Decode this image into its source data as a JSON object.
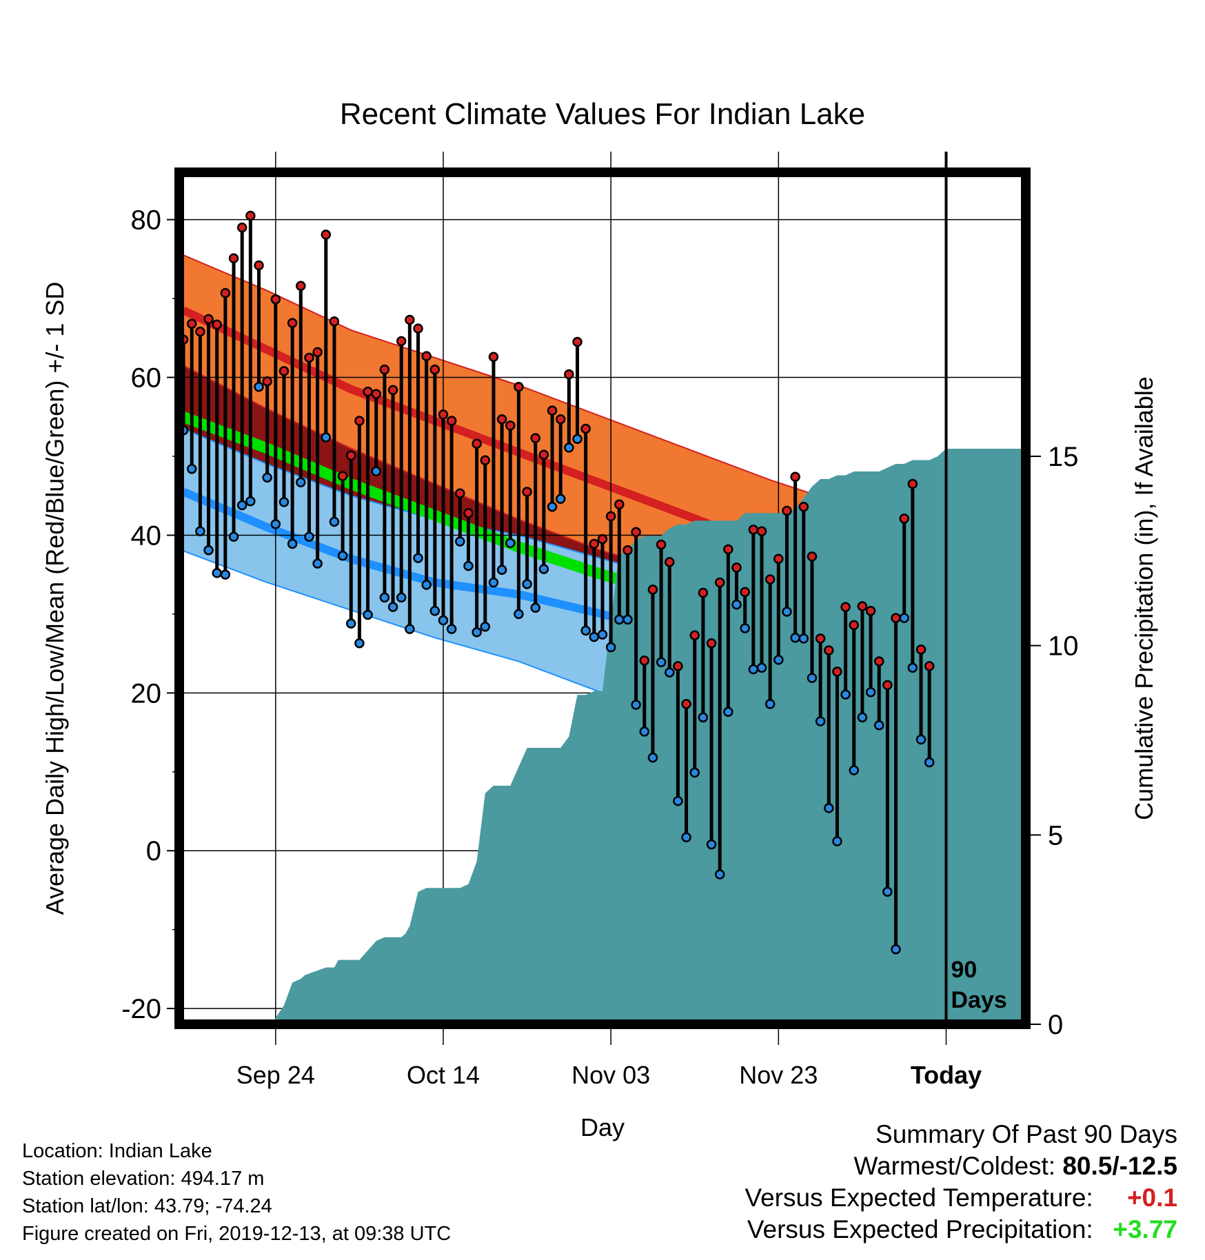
{
  "chart_data": {
    "type": "line",
    "title": "Recent Climate Values For Indian Lake",
    "xlabel": "Day",
    "ylabel": "Average Daily High/Low/Mean (Red/Blue/Green) +/- 1 SD",
    "y2label": "Cumulative Precipitation (in), If Available",
    "ylim": [
      -22,
      86
    ],
    "y2lim": [
      0,
      22.5
    ],
    "yticks": [
      -20,
      0,
      20,
      40,
      60,
      80
    ],
    "y2ticks": [
      0,
      5,
      10,
      15
    ],
    "xticks": [
      {
        "day": 23,
        "label": "Sep 24"
      },
      {
        "day": 43,
        "label": "Oct 14"
      },
      {
        "day": 63,
        "label": "Nov 03"
      },
      {
        "day": 83,
        "label": "Nov 23"
      },
      {
        "day": 103,
        "label": "Today"
      }
    ],
    "xlim": [
      11.5,
      112.5
    ],
    "today_marker": {
      "day": 103,
      "label_line1": "90",
      "label_line2": "Days"
    },
    "normals": {
      "days": [
        12,
        22,
        32,
        42,
        52,
        62,
        72,
        82,
        92,
        102,
        112
      ],
      "high_mean": [
        68.5,
        63.5,
        58.5,
        54.5,
        50.5,
        46.5,
        42.5,
        38.5,
        34.0,
        30.0,
        27.5
      ],
      "high_upper": [
        75.5,
        71.0,
        66.0,
        62.5,
        59.0,
        55.0,
        51.0,
        47.0,
        43.5,
        40.5,
        38.5
      ],
      "high_lower": [
        61.5,
        56.0,
        51.0,
        46.5,
        42.0,
        38.0,
        35.0,
        31.5,
        28.5,
        26.0,
        23.5
      ],
      "mean_line": [
        55.0,
        51.0,
        46.5,
        42.5,
        38.5,
        35.0,
        32.0,
        28.0,
        24.5,
        20.5,
        17.5
      ],
      "low_mean": [
        45.5,
        41.0,
        37.0,
        34.0,
        32.5,
        30.0,
        27.0,
        24.0,
        19.5,
        15.0,
        12.0
      ],
      "low_upper": [
        53.5,
        49.0,
        45.0,
        42.0,
        40.0,
        37.0,
        34.0,
        30.5,
        26.0,
        22.0,
        20.0
      ],
      "low_lower": [
        38.0,
        34.0,
        30.5,
        27.0,
        24.0,
        20.0,
        14.0,
        7.5,
        3.0,
        0.0,
        0.0
      ]
    },
    "series": [
      {
        "name": "High",
        "color": "#cc2222",
        "values": [
          64.8,
          66.8,
          65.8,
          67.4,
          66.7,
          70.7,
          75.1,
          79.0,
          80.5,
          74.2,
          59.5,
          69.9,
          60.8,
          66.9,
          71.6,
          62.5,
          63.2,
          78.1,
          67.1,
          47.5,
          50.1,
          54.5,
          58.2,
          57.9,
          61.0,
          58.4,
          64.6,
          67.3,
          66.2,
          62.7,
          61.0,
          55.3,
          54.5,
          45.3,
          42.8,
          51.6,
          49.5,
          62.6,
          54.7,
          53.9,
          58.8,
          45.5,
          52.3,
          50.2,
          55.8,
          54.7,
          60.4,
          64.5,
          53.5,
          38.9,
          39.5,
          42.4,
          43.9,
          38.1,
          40.4,
          24.1,
          33.1,
          38.8,
          36.6,
          23.4,
          18.6,
          27.3,
          32.7,
          26.3,
          34.0,
          38.2,
          35.9,
          32.8,
          40.7,
          40.5,
          34.4,
          37.0,
          43.1,
          47.4,
          43.6,
          37.3,
          26.9,
          25.4,
          22.7,
          30.9,
          28.6,
          31.0,
          30.4,
          24.0,
          21.0,
          29.5,
          42.1,
          46.5,
          25.5,
          23.4
        ]
      },
      {
        "name": "Low",
        "color": "#2a7fd4",
        "values": [
          53.3,
          48.4,
          40.5,
          38.1,
          35.2,
          35.0,
          39.8,
          43.8,
          44.3,
          58.8,
          47.3,
          41.4,
          44.2,
          38.9,
          46.7,
          39.8,
          36.4,
          52.4,
          41.7,
          37.4,
          28.8,
          26.3,
          29.9,
          48.1,
          32.1,
          30.9,
          32.1,
          28.1,
          37.1,
          33.7,
          30.4,
          29.2,
          28.1,
          39.2,
          36.1,
          27.7,
          28.4,
          34.0,
          35.6,
          39.0,
          30.0,
          33.8,
          30.8,
          35.7,
          43.6,
          44.6,
          51.1,
          52.2,
          27.9,
          27.1,
          27.4,
          25.8,
          29.3,
          29.3,
          18.5,
          15.1,
          11.8,
          23.9,
          22.6,
          6.3,
          1.7,
          9.9,
          16.9,
          0.8,
          -3.0,
          17.6,
          31.2,
          28.2,
          23.0,
          23.2,
          18.6,
          24.2,
          30.3,
          27.0,
          26.9,
          21.9,
          16.4,
          5.4,
          1.2,
          19.8,
          10.2,
          16.9,
          20.1,
          15.9,
          -5.2,
          -12.5,
          29.5,
          23.2,
          14.1,
          11.2
        ]
      }
    ],
    "precipitation": {
      "days": [
        13,
        22,
        22.5,
        24,
        25,
        26,
        26.5,
        29,
        30,
        30.5,
        31.5,
        33,
        35,
        36,
        37,
        37.5,
        38,
        38.5,
        39,
        40,
        41,
        42,
        43,
        44,
        45,
        46,
        47,
        48,
        49,
        50,
        51,
        52,
        53,
        54,
        55,
        56,
        57,
        58,
        59,
        60,
        61,
        62,
        63,
        64,
        65,
        66,
        67,
        68,
        69,
        70,
        71,
        72,
        73,
        74,
        75,
        76,
        77,
        78,
        79,
        80,
        81,
        82,
        83,
        84,
        85,
        86,
        87,
        88,
        89,
        90,
        91,
        92,
        93,
        94,
        95,
        96,
        97,
        98,
        99,
        100,
        101,
        102,
        103,
        104,
        105,
        106,
        107,
        108,
        109,
        110,
        111,
        112
      ],
      "cumulative": [
        0,
        0,
        0,
        0.5,
        1.1,
        1.2,
        1.3,
        1.5,
        1.5,
        1.7,
        1.7,
        1.7,
        2.2,
        2.3,
        2.3,
        2.3,
        2.3,
        2.4,
        2.6,
        3.5,
        3.6,
        3.6,
        3.6,
        3.6,
        3.6,
        3.7,
        4.3,
        6.1,
        6.3,
        6.3,
        6.3,
        6.8,
        7.3,
        7.3,
        7.3,
        7.3,
        7.3,
        7.6,
        8.7,
        8.7,
        8.8,
        8.8,
        10.7,
        12.4,
        12.5,
        12.8,
        12.9,
        12.9,
        12.9,
        13.1,
        13.2,
        13.2,
        13.3,
        13.3,
        13.3,
        13.3,
        13.3,
        13.3,
        13.5,
        13.5,
        13.5,
        13.5,
        13.5,
        13.5,
        13.6,
        13.9,
        14.2,
        14.4,
        14.4,
        14.5,
        14.5,
        14.6,
        14.6,
        14.6,
        14.6,
        14.7,
        14.8,
        14.8,
        14.9,
        14.9,
        14.9,
        15.0,
        15.2,
        15.2,
        15.2,
        15.2,
        15.2,
        15.2,
        15.2,
        15.2,
        15.2,
        15.2
      ]
    }
  },
  "info": {
    "location": "Location: Indian Lake",
    "elevation": "Station elevation: 494.17 m",
    "latlon": "Station lat/lon: 43.79; -74.24",
    "created": "Figure created on Fri, 2019-12-13, at 09:38 UTC"
  },
  "summary": {
    "heading": "Summary Of Past 90 Days",
    "warmest_label": "Warmest/Coldest:",
    "warmest_value": "80.5/-12.5",
    "temp_label": "Versus Expected Temperature:",
    "temp_value": "+0.1",
    "precip_label": "Versus Expected Precipitation:",
    "precip_value": "+3.77"
  },
  "colors": {
    "high_band": "#f07830",
    "high_band_above_low": "#8b1515",
    "low_band": "#88c4ec",
    "high_line": "#d42020",
    "low_line": "#1e90ff",
    "mean_line": "#00e000",
    "precip_fill": "#4a9aa0",
    "high_dot": "#d42020",
    "low_dot": "#2a88e0",
    "temp_delta": "#d42020",
    "precip_delta": "#22dd22"
  }
}
